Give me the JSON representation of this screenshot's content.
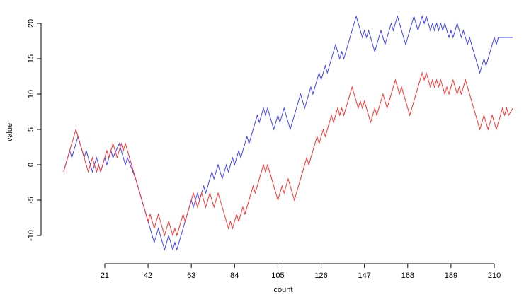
{
  "chart_data": {
    "type": "line",
    "x_label": "count",
    "y_label": "value",
    "xlim": [
      -7.5,
      222.7
    ],
    "ylim": [
      -13.2,
      22.3
    ],
    "xticks": [
      21,
      42,
      63,
      84,
      105,
      126,
      147,
      168,
      189,
      210
    ],
    "yticks": [
      -10,
      -5,
      0,
      5,
      10,
      15,
      20
    ],
    "series": [
      {
        "color": "#4040ff",
        "x": [
          1,
          4,
          5,
          8,
          11,
          12,
          15,
          17,
          18,
          19,
          21,
          22,
          24,
          25,
          28,
          31,
          32,
          36,
          45,
          47,
          50,
          52,
          54,
          55,
          56,
          63,
          64,
          66,
          67,
          69,
          70,
          73,
          74,
          76,
          78,
          80,
          81,
          83,
          84,
          86,
          87,
          90,
          91,
          95,
          96,
          98,
          99,
          100,
          103,
          105,
          106,
          108,
          111,
          116,
          118,
          121,
          122,
          125,
          126,
          128,
          129,
          133,
          135,
          136,
          137,
          143,
          146,
          147,
          148,
          149,
          150,
          152,
          155,
          157,
          160,
          161,
          163,
          167,
          171,
          173,
          175,
          176,
          177,
          179,
          180,
          181,
          182,
          183,
          184,
          185,
          186,
          188,
          189,
          190,
          192,
          194,
          195,
          197,
          198,
          203,
          205,
          206,
          210,
          211,
          212,
          219
        ],
        "values": [
          -1,
          2,
          1,
          4,
          1,
          2,
          -1,
          1,
          0,
          -1,
          1,
          0,
          2,
          1,
          3,
          0,
          1,
          -2,
          -11,
          -9,
          -12,
          -10,
          -12,
          -11,
          -12,
          -5,
          -6,
          -4,
          -5,
          -3,
          -4,
          -1,
          -2,
          0,
          -2,
          0,
          -1,
          1,
          0,
          2,
          1,
          4,
          3,
          7,
          6,
          8,
          7,
          8,
          5,
          7,
          6,
          8,
          5,
          10,
          8,
          11,
          10,
          13,
          12,
          14,
          13,
          17,
          15,
          16,
          15,
          21,
          18,
          19,
          18,
          19,
          18,
          16,
          19,
          17,
          20,
          19,
          21,
          17,
          21,
          19,
          21,
          20,
          21,
          19,
          20,
          19,
          20,
          19,
          20,
          19,
          20,
          18,
          19,
          18,
          20,
          18,
          19,
          17,
          18,
          13,
          15,
          14,
          18,
          17,
          18,
          18
        ]
      },
      {
        "color": "#ff3030",
        "x": [
          1,
          7,
          13,
          15,
          17,
          18,
          19,
          22,
          23,
          25,
          27,
          29,
          30,
          31,
          42,
          43,
          45,
          47,
          50,
          52,
          54,
          55,
          56,
          59,
          60,
          63,
          64,
          66,
          68,
          70,
          72,
          74,
          76,
          81,
          82,
          83,
          85,
          86,
          88,
          89,
          93,
          94,
          98,
          99,
          100,
          105,
          107,
          108,
          110,
          113,
          119,
          120,
          124,
          125,
          127,
          128,
          131,
          132,
          134,
          135,
          136,
          137,
          141,
          144,
          145,
          146,
          147,
          150,
          152,
          153,
          156,
          158,
          162,
          164,
          165,
          169,
          175,
          176,
          177,
          179,
          180,
          181,
          182,
          183,
          184,
          186,
          187,
          188,
          190,
          192,
          193,
          194,
          196,
          203,
          205,
          207,
          209,
          211,
          214,
          215,
          216,
          217,
          219
        ],
        "values": [
          -1,
          5,
          -1,
          1,
          -1,
          0,
          -1,
          2,
          1,
          3,
          1,
          3,
          2,
          3,
          -8,
          -7,
          -9,
          -7,
          -10,
          -8,
          -10,
          -9,
          -10,
          -7,
          -8,
          -5,
          -4,
          -6,
          -4,
          -6,
          -4,
          -6,
          -4,
          -9,
          -8,
          -9,
          -7,
          -8,
          -6,
          -7,
          -3,
          -4,
          0,
          -1,
          0,
          -5,
          -3,
          -4,
          -2,
          -5,
          1,
          0,
          4,
          3,
          5,
          4,
          7,
          6,
          8,
          7,
          8,
          7,
          11,
          8,
          9,
          8,
          9,
          6,
          8,
          7,
          10,
          8,
          12,
          10,
          11,
          7,
          13,
          12,
          13,
          11,
          12,
          11,
          12,
          11,
          12,
          10,
          11,
          10,
          12,
          10,
          11,
          10,
          12,
          5,
          7,
          5,
          7,
          5,
          8,
          7,
          8,
          7,
          8
        ]
      }
    ]
  }
}
